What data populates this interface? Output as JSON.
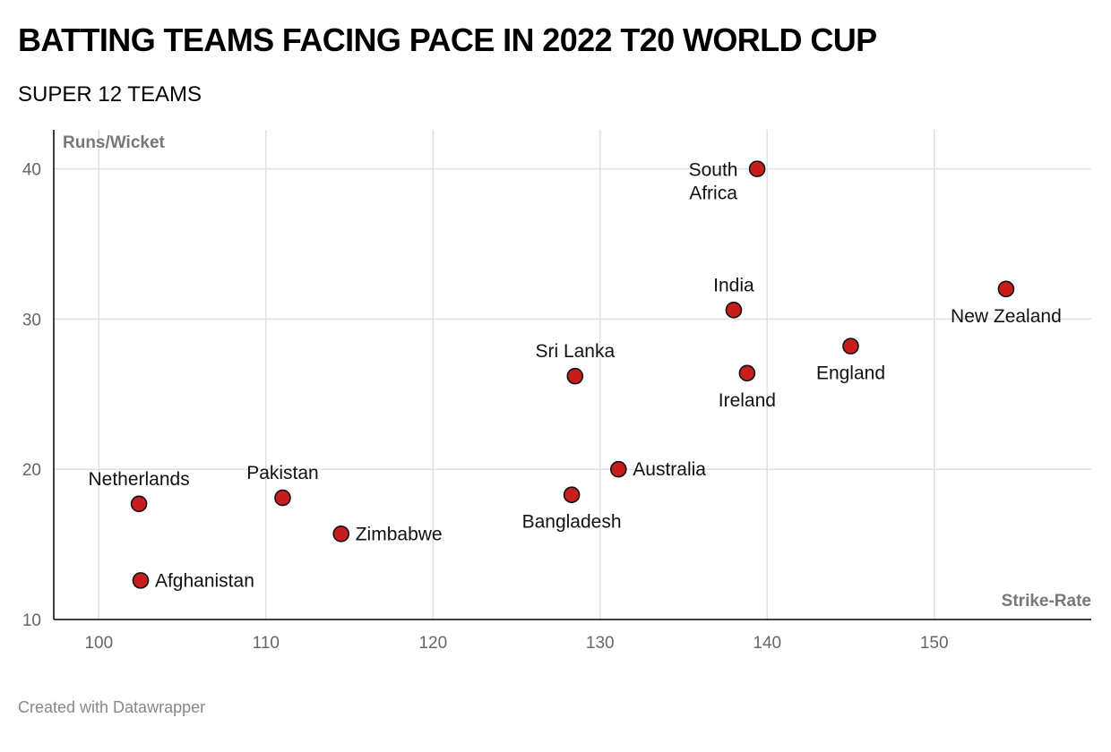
{
  "header": {
    "title": "BATTING TEAMS FACING PACE IN 2022 T20 WORLD CUP",
    "subtitle": "SUPER 12 TEAMS"
  },
  "footer": {
    "credit": "Created with Datawrapper"
  },
  "colors": {
    "marker": "#c71e1d",
    "marker_stroke": "#111111",
    "grid": "#e0e0e0",
    "axis": "#000000"
  },
  "chart_data": {
    "type": "scatter",
    "title": "BATTING TEAMS FACING PACE IN 2022 T20 WORLD CUP",
    "subtitle": "SUPER 12 TEAMS",
    "xlabel": "Strike-Rate",
    "ylabel": "Runs/Wicket",
    "xlim": [
      97.3,
      159.4
    ],
    "ylim": [
      10,
      42.6
    ],
    "xticks": [
      "100",
      "110",
      "120",
      "130",
      "140",
      "150"
    ],
    "yticks": [
      "10",
      "20",
      "30",
      "40"
    ],
    "grid": true,
    "points": [
      {
        "name": "South Africa",
        "lines": [
          "South",
          "Africa"
        ],
        "x": 139.4,
        "y": 40.0,
        "label_pos": "left"
      },
      {
        "name": "New Zealand",
        "lines": [
          "New Zealand"
        ],
        "x": 154.3,
        "y": 32.0,
        "label_pos": "below"
      },
      {
        "name": "India",
        "lines": [
          "India"
        ],
        "x": 138.0,
        "y": 30.6,
        "label_pos": "above"
      },
      {
        "name": "England",
        "lines": [
          "England"
        ],
        "x": 145.0,
        "y": 28.2,
        "label_pos": "below"
      },
      {
        "name": "Ireland",
        "lines": [
          "Ireland"
        ],
        "x": 138.8,
        "y": 26.4,
        "label_pos": "below"
      },
      {
        "name": "Sri Lanka",
        "lines": [
          "Sri Lanka"
        ],
        "x": 128.5,
        "y": 26.2,
        "label_pos": "above"
      },
      {
        "name": "Australia",
        "lines": [
          "Australia"
        ],
        "x": 131.1,
        "y": 20.0,
        "label_pos": "right"
      },
      {
        "name": "Bangladesh",
        "lines": [
          "Bangladesh"
        ],
        "x": 128.3,
        "y": 18.3,
        "label_pos": "below"
      },
      {
        "name": "Netherlands",
        "lines": [
          "Netherlands"
        ],
        "x": 102.4,
        "y": 17.7,
        "label_pos": "above"
      },
      {
        "name": "Pakistan",
        "lines": [
          "Pakistan"
        ],
        "x": 111.0,
        "y": 18.1,
        "label_pos": "above"
      },
      {
        "name": "Zimbabwe",
        "lines": [
          "Zimbabwe"
        ],
        "x": 114.5,
        "y": 15.7,
        "label_pos": "right"
      },
      {
        "name": "Afghanistan",
        "lines": [
          "Afghanistan"
        ],
        "x": 102.5,
        "y": 12.6,
        "label_pos": "right"
      }
    ]
  }
}
